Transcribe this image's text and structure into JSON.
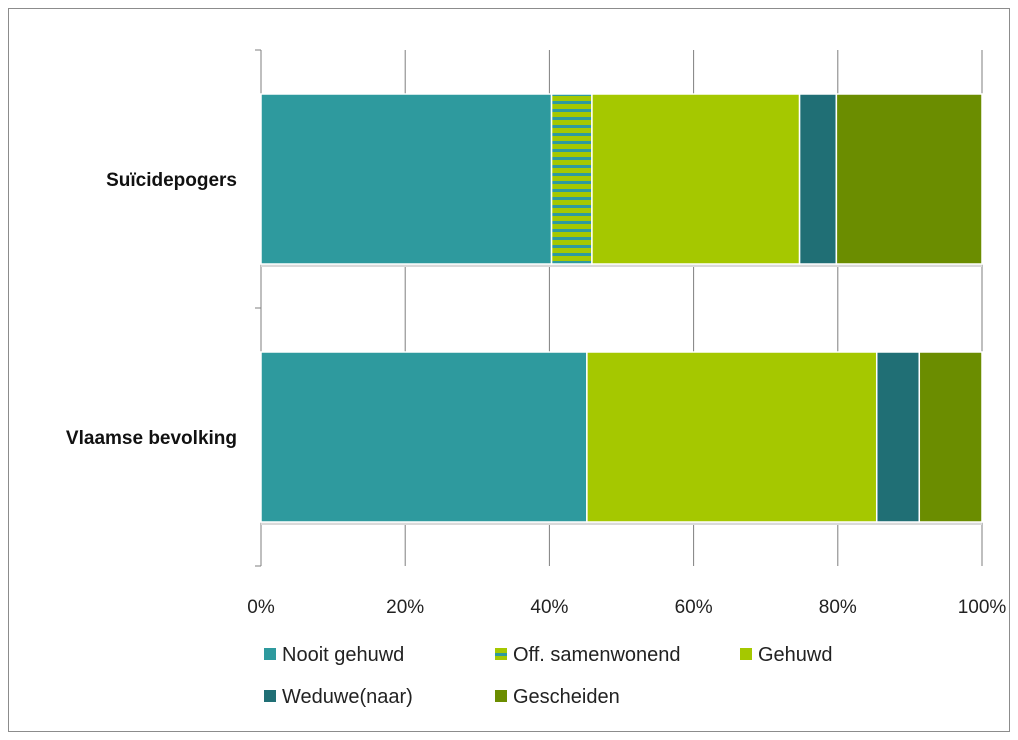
{
  "chart_data": {
    "type": "bar",
    "orientation": "horizontal",
    "stacked": true,
    "percent_stacked": true,
    "categories": [
      "Suïcidepogers",
      "Vlaamse bevolking"
    ],
    "series": [
      {
        "name": "Nooit gehuwd",
        "values": [
          40.3,
          45.2
        ],
        "color": "#2e9a9e"
      },
      {
        "name": "Off. samenwonend",
        "values": [
          5.6,
          0
        ],
        "color": "#a5c800",
        "pattern": "horizontal-stripes",
        "pattern_color": "#2e9a9e"
      },
      {
        "name": "Gehuwd",
        "values": [
          28.8,
          40.2
        ],
        "color": "#a5c800"
      },
      {
        "name": "Weduwe(naar)",
        "values": [
          5.1,
          5.9
        ],
        "color": "#206f75"
      },
      {
        "name": "Gescheiden",
        "values": [
          20.2,
          8.7
        ],
        "color": "#6b8d00"
      }
    ],
    "xlim": [
      0,
      100
    ],
    "x_ticks": [
      "0%",
      "20%",
      "40%",
      "60%",
      "80%",
      "100%"
    ],
    "grid": true,
    "legend_position": "bottom",
    "title": "",
    "xlabel": "",
    "ylabel": ""
  }
}
